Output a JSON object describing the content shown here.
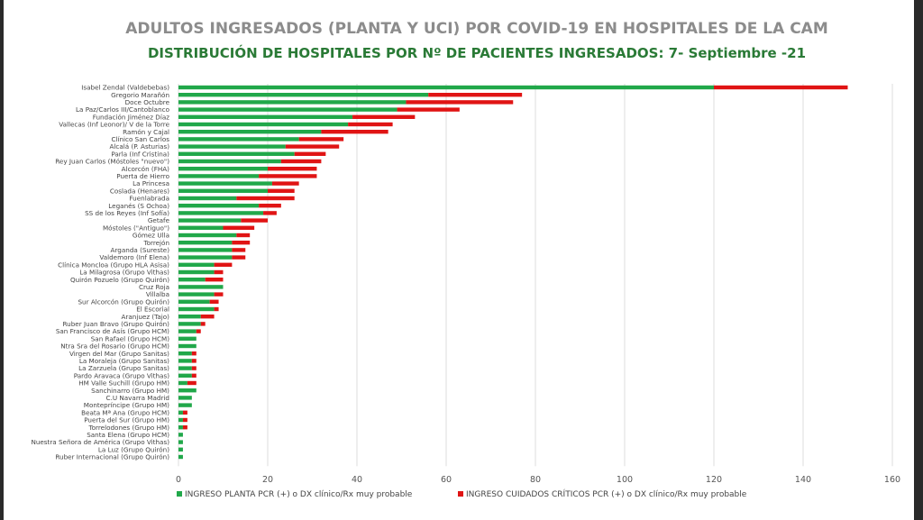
{
  "chart_data": {
    "type": "bar",
    "orientation": "horizontal",
    "stacked": true,
    "title": "ADULTOS INGRESADOS (PLANTA Y UCI) POR COVID-19 EN HOSPITALES DE LA CAM",
    "subtitle": "DISTRIBUCIÓN DE HOSPITALES POR Nº DE PACIENTES INGRESADOS: 7- Septiembre -21",
    "xlim": [
      0,
      160
    ],
    "xticks": [
      0,
      20,
      40,
      60,
      80,
      100,
      120,
      140,
      160
    ],
    "grid": true,
    "legend_position": "bottom",
    "categories": [
      "Isabel Zendal (Valdebebas)",
      "Gregorio Marañón",
      "Doce Octubre",
      "La Paz/Carlos III/Cantoblanco",
      "Fundación Jiménez Díaz",
      "Vallecas (Inf Leonor)/ V de la Torre",
      "Ramón y Cajal",
      "Clínico San Carlos",
      "Alcalá (P. Asturias)",
      "Parla (Inf Cristina)",
      "Rey Juan Carlos (Móstoles \"nuevo\")",
      "Alcorcón (FHA)",
      "Puerta de Hierro",
      "La Princesa",
      "Coslada (Henares)",
      "Fuenlabrada",
      "Leganés (S Ochoa)",
      "SS de los Reyes (Inf Sofía)",
      "Getafe",
      "Móstoles (\"Antiguo\")",
      "Gómez Ulla",
      "Torrejón",
      "Arganda (Sureste)",
      "Valdemoro (Inf Elena)",
      "Clínica Moncloa (Grupo HLA Asisa)",
      "La Milagrosa (Grupo Vithas)",
      "Quirón Pozuelo (Grupo Quirón)",
      "Cruz Roja",
      "Villalba",
      "Sur Alcorcón (Grupo Quirón)",
      "El Escorial",
      "Aranjuez (Tajo)",
      "Ruber Juan Bravo (Grupo Quirón)",
      "San Francisco de Asís (Grupo HCM)",
      "San Rafael (Grupo HCM)",
      "Ntra Sra del Rosario (Grupo HCM)",
      "Virgen del Mar (Grupo Sanitas)",
      "La Moraleja (Grupo Sanitas)",
      "La Zarzuela (Grupo Sanitas)",
      "Pardo Aravaca (Grupo Vithas)",
      "HM Valle Suchill (Grupo HM)",
      "Sanchinarro (Grupo HM)",
      "C.U Navarra Madrid",
      "Montepríncipe (Grupo HM)",
      "Beata Mª Ana (Grupo HCM)",
      "Puerta del Sur (Grupo HM)",
      "Torrelodones (Grupo HM)",
      "Santa Elena (Grupo HCM)",
      "Nuestra Señora de América (Grupo Vithas)",
      "La Luz (Grupo Quirón)",
      "Ruber Internacional (Grupo Quirón)"
    ],
    "series": [
      {
        "name": "INGRESO PLANTA PCR (+) o DX clínico/Rx muy probable",
        "color": "#21a84a",
        "values": [
          120,
          56,
          51,
          49,
          39,
          38,
          32,
          27,
          24,
          26,
          23,
          20,
          18,
          21,
          20,
          13,
          18,
          19,
          14,
          10,
          13,
          12,
          12,
          12,
          8,
          8,
          6,
          10,
          8,
          7,
          8,
          5,
          5,
          4,
          4,
          4,
          3,
          3,
          3,
          3,
          2,
          4,
          3,
          3,
          1,
          1,
          1,
          1,
          1,
          1,
          1
        ]
      },
      {
        "name": "INGRESO CUIDADOS CRÍTICOS PCR (+) o DX clínico/Rx muy probable",
        "color": "#e01414",
        "values": [
          30,
          21,
          24,
          14,
          14,
          10,
          15,
          10,
          12,
          7,
          9,
          11,
          13,
          6,
          6,
          13,
          5,
          3,
          6,
          7,
          3,
          4,
          3,
          3,
          4,
          2,
          4,
          0,
          2,
          2,
          1,
          3,
          1,
          1,
          0,
          0,
          1,
          1,
          1,
          1,
          2,
          0,
          0,
          0,
          1,
          1,
          1,
          0,
          0,
          0,
          0
        ]
      }
    ]
  }
}
